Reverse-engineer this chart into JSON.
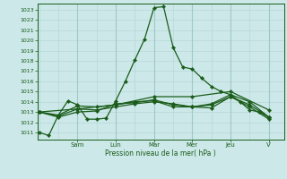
{
  "bg_color": "#cce8e8",
  "grid_color_minor": "#b8d8d8",
  "grid_color_major": "#a0c8c8",
  "line_color": "#1a5c1a",
  "xlabel": "Pression niveau de la mer( hPa )",
  "ylim_min": 1010.3,
  "ylim_max": 1023.6,
  "yticks": [
    1011,
    1012,
    1013,
    1014,
    1015,
    1016,
    1017,
    1018,
    1019,
    1020,
    1021,
    1022,
    1023
  ],
  "x_day_labels": [
    "Sam",
    "Lun",
    "Mar",
    "Mer",
    "Jeu",
    "V"
  ],
  "x_day_positions": [
    2,
    4,
    6,
    8,
    10,
    12
  ],
  "xlim_min": -0.1,
  "xlim_max": 12.8,
  "series": [
    {
      "x": [
        0,
        0.5,
        1.0,
        1.5,
        2.0,
        2.5,
        3.0,
        3.5,
        4.0,
        4.5,
        5.0,
        5.5,
        6.0,
        6.5,
        7.0,
        7.5,
        8.0,
        8.5,
        9.0,
        9.5,
        10.0,
        10.5,
        11.0,
        11.5,
        12.0
      ],
      "y": [
        1011.0,
        1010.7,
        1012.7,
        1014.1,
        1013.7,
        1012.3,
        1012.3,
        1012.4,
        1014.1,
        1016.0,
        1018.1,
        1020.1,
        1023.2,
        1023.3,
        1019.3,
        1017.4,
        1017.2,
        1016.3,
        1015.5,
        1015.0,
        1014.7,
        1014.0,
        1013.2,
        1013.0,
        1012.5
      ]
    },
    {
      "x": [
        0,
        1.0,
        2.0,
        3.0,
        4.0,
        5.0,
        6.0,
        7.0,
        8.0,
        9.0,
        10.0,
        11.0,
        12.0
      ],
      "y": [
        1013.0,
        1012.7,
        1013.6,
        1013.5,
        1013.7,
        1014.0,
        1014.1,
        1013.5,
        1013.5,
        1013.7,
        1014.5,
        1013.7,
        1012.5
      ]
    },
    {
      "x": [
        0,
        1.0,
        2.0,
        3.0,
        4.0,
        5.0,
        6.0,
        7.0,
        8.0,
        9.0,
        10.0,
        11.0,
        12.0
      ],
      "y": [
        1013.0,
        1012.5,
        1013.0,
        1013.1,
        1013.8,
        1013.9,
        1014.2,
        1013.7,
        1013.5,
        1013.4,
        1014.5,
        1013.5,
        1012.3
      ]
    },
    {
      "x": [
        0,
        1.0,
        2.0,
        3.0,
        4.0,
        5.0,
        6.0,
        7.0,
        8.0,
        9.0,
        10.0,
        11.0,
        12.0
      ],
      "y": [
        1013.0,
        1012.6,
        1013.3,
        1013.2,
        1013.5,
        1013.8,
        1014.0,
        1013.8,
        1013.5,
        1013.8,
        1014.7,
        1014.0,
        1012.5
      ]
    },
    {
      "x": [
        0,
        2.0,
        4.0,
        6.0,
        8.0,
        10.0,
        12.0
      ],
      "y": [
        1013.0,
        1013.3,
        1013.7,
        1014.5,
        1014.5,
        1015.0,
        1013.2
      ]
    }
  ]
}
